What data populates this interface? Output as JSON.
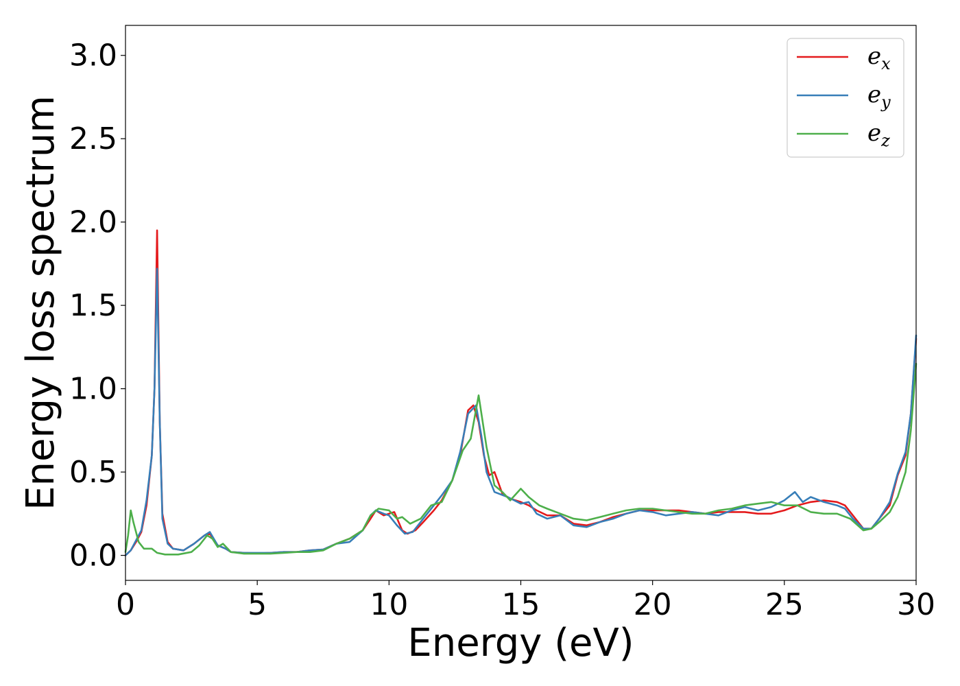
{
  "chart_data": {
    "type": "line",
    "xlabel": "Energy (eV)",
    "ylabel": "Energy loss spectrum",
    "xlim": [
      0,
      30
    ],
    "ylim": [
      -0.15,
      3.18
    ],
    "xticks": [
      0,
      5,
      10,
      15,
      20,
      25,
      30
    ],
    "xtick_labels": [
      "0",
      "5",
      "10",
      "15",
      "20",
      "25",
      "30"
    ],
    "yticks": [
      0.0,
      0.5,
      1.0,
      1.5,
      2.0,
      2.5,
      3.0
    ],
    "ytick_labels": [
      "0.0",
      "0.5",
      "1.0",
      "1.5",
      "2.0",
      "2.5",
      "3.0"
    ],
    "grid": false,
    "legend_position": "top-right",
    "series": [
      {
        "name": "e",
        "subscript": "x",
        "color": "#e41a1c",
        "points": [
          [
            0,
            0.0
          ],
          [
            0.2,
            0.03
          ],
          [
            0.4,
            0.08
          ],
          [
            0.6,
            0.14
          ],
          [
            0.8,
            0.3
          ],
          [
            1.0,
            0.6
          ],
          [
            1.1,
            1.0
          ],
          [
            1.2,
            1.95
          ],
          [
            1.3,
            0.8
          ],
          [
            1.4,
            0.25
          ],
          [
            1.6,
            0.08
          ],
          [
            1.8,
            0.04
          ],
          [
            2.2,
            0.03
          ],
          [
            2.6,
            0.07
          ],
          [
            3.0,
            0.12
          ],
          [
            3.2,
            0.13
          ],
          [
            3.5,
            0.06
          ],
          [
            3.8,
            0.04
          ],
          [
            4.0,
            0.02
          ],
          [
            4.5,
            0.015
          ],
          [
            5.0,
            0.012
          ],
          [
            5.5,
            0.015
          ],
          [
            6.0,
            0.02
          ],
          [
            6.5,
            0.02
          ],
          [
            7.0,
            0.03
          ],
          [
            7.5,
            0.035
          ],
          [
            8.0,
            0.07
          ],
          [
            8.5,
            0.1
          ],
          [
            9.0,
            0.15
          ],
          [
            9.3,
            0.22
          ],
          [
            9.5,
            0.27
          ],
          [
            9.8,
            0.24
          ],
          [
            10.0,
            0.25
          ],
          [
            10.2,
            0.26
          ],
          [
            10.5,
            0.15
          ],
          [
            10.7,
            0.13
          ],
          [
            11.0,
            0.15
          ],
          [
            11.3,
            0.2
          ],
          [
            11.7,
            0.27
          ],
          [
            12.0,
            0.33
          ],
          [
            12.4,
            0.45
          ],
          [
            12.7,
            0.6
          ],
          [
            13.0,
            0.87
          ],
          [
            13.2,
            0.9
          ],
          [
            13.4,
            0.8
          ],
          [
            13.6,
            0.6
          ],
          [
            13.8,
            0.48
          ],
          [
            14.0,
            0.5
          ],
          [
            14.3,
            0.37
          ],
          [
            14.6,
            0.34
          ],
          [
            15.0,
            0.32
          ],
          [
            15.3,
            0.3
          ],
          [
            15.6,
            0.27
          ],
          [
            16.0,
            0.24
          ],
          [
            16.5,
            0.24
          ],
          [
            17.0,
            0.19
          ],
          [
            17.5,
            0.18
          ],
          [
            18.0,
            0.2
          ],
          [
            18.5,
            0.23
          ],
          [
            19.0,
            0.25
          ],
          [
            19.5,
            0.27
          ],
          [
            20.0,
            0.27
          ],
          [
            20.5,
            0.27
          ],
          [
            21.0,
            0.27
          ],
          [
            21.5,
            0.26
          ],
          [
            22.0,
            0.25
          ],
          [
            22.5,
            0.26
          ],
          [
            23.0,
            0.26
          ],
          [
            23.5,
            0.26
          ],
          [
            24.0,
            0.25
          ],
          [
            24.5,
            0.25
          ],
          [
            25.0,
            0.27
          ],
          [
            25.5,
            0.3
          ],
          [
            26.0,
            0.32
          ],
          [
            26.5,
            0.33
          ],
          [
            27.0,
            0.32
          ],
          [
            27.3,
            0.3
          ],
          [
            27.6,
            0.24
          ],
          [
            28.0,
            0.16
          ],
          [
            28.3,
            0.16
          ],
          [
            28.6,
            0.22
          ],
          [
            29.0,
            0.3
          ],
          [
            29.3,
            0.48
          ],
          [
            29.6,
            0.6
          ],
          [
            29.8,
            0.85
          ],
          [
            30.0,
            1.3
          ]
        ]
      },
      {
        "name": "e",
        "subscript": "y",
        "color": "#377eb8",
        "points": [
          [
            0,
            0.0
          ],
          [
            0.2,
            0.03
          ],
          [
            0.4,
            0.09
          ],
          [
            0.6,
            0.15
          ],
          [
            0.8,
            0.33
          ],
          [
            1.0,
            0.6
          ],
          [
            1.1,
            1.0
          ],
          [
            1.2,
            1.72
          ],
          [
            1.3,
            0.8
          ],
          [
            1.4,
            0.22
          ],
          [
            1.6,
            0.07
          ],
          [
            1.8,
            0.04
          ],
          [
            2.2,
            0.03
          ],
          [
            2.6,
            0.07
          ],
          [
            3.0,
            0.12
          ],
          [
            3.2,
            0.14
          ],
          [
            3.5,
            0.06
          ],
          [
            3.8,
            0.04
          ],
          [
            4.0,
            0.02
          ],
          [
            4.5,
            0.015
          ],
          [
            5.0,
            0.015
          ],
          [
            5.5,
            0.015
          ],
          [
            6.0,
            0.02
          ],
          [
            6.5,
            0.02
          ],
          [
            7.0,
            0.03
          ],
          [
            7.5,
            0.035
          ],
          [
            8.0,
            0.07
          ],
          [
            8.5,
            0.08
          ],
          [
            9.0,
            0.15
          ],
          [
            9.3,
            0.24
          ],
          [
            9.5,
            0.27
          ],
          [
            9.8,
            0.25
          ],
          [
            10.0,
            0.24
          ],
          [
            10.3,
            0.18
          ],
          [
            10.6,
            0.13
          ],
          [
            10.9,
            0.14
          ],
          [
            11.3,
            0.22
          ],
          [
            11.7,
            0.3
          ],
          [
            12.0,
            0.36
          ],
          [
            12.4,
            0.45
          ],
          [
            12.7,
            0.62
          ],
          [
            13.0,
            0.85
          ],
          [
            13.3,
            0.9
          ],
          [
            13.5,
            0.72
          ],
          [
            13.7,
            0.5
          ],
          [
            14.0,
            0.38
          ],
          [
            14.5,
            0.35
          ],
          [
            15.0,
            0.31
          ],
          [
            15.3,
            0.32
          ],
          [
            15.6,
            0.25
          ],
          [
            16.0,
            0.22
          ],
          [
            16.5,
            0.24
          ],
          [
            17.0,
            0.18
          ],
          [
            17.5,
            0.17
          ],
          [
            18.0,
            0.2
          ],
          [
            18.5,
            0.22
          ],
          [
            19.0,
            0.25
          ],
          [
            19.5,
            0.27
          ],
          [
            20.0,
            0.26
          ],
          [
            20.5,
            0.24
          ],
          [
            21.0,
            0.25
          ],
          [
            21.5,
            0.26
          ],
          [
            22.0,
            0.25
          ],
          [
            22.5,
            0.24
          ],
          [
            23.0,
            0.27
          ],
          [
            23.5,
            0.29
          ],
          [
            24.0,
            0.27
          ],
          [
            24.5,
            0.29
          ],
          [
            25.0,
            0.33
          ],
          [
            25.4,
            0.38
          ],
          [
            25.7,
            0.32
          ],
          [
            26.0,
            0.35
          ],
          [
            26.5,
            0.32
          ],
          [
            27.0,
            0.3
          ],
          [
            27.3,
            0.28
          ],
          [
            27.6,
            0.22
          ],
          [
            28.0,
            0.16
          ],
          [
            28.3,
            0.16
          ],
          [
            28.6,
            0.22
          ],
          [
            29.0,
            0.32
          ],
          [
            29.3,
            0.49
          ],
          [
            29.6,
            0.62
          ],
          [
            29.8,
            0.85
          ],
          [
            30.0,
            1.32
          ]
        ]
      },
      {
        "name": "e",
        "subscript": "z",
        "color": "#4daf4a",
        "points": [
          [
            0,
            0.02
          ],
          [
            0.1,
            0.12
          ],
          [
            0.2,
            0.27
          ],
          [
            0.3,
            0.2
          ],
          [
            0.5,
            0.08
          ],
          [
            0.7,
            0.04
          ],
          [
            1.0,
            0.04
          ],
          [
            1.2,
            0.015
          ],
          [
            1.5,
            0.005
          ],
          [
            2.0,
            0.005
          ],
          [
            2.5,
            0.02
          ],
          [
            2.8,
            0.06
          ],
          [
            3.1,
            0.12
          ],
          [
            3.3,
            0.1
          ],
          [
            3.5,
            0.05
          ],
          [
            3.7,
            0.07
          ],
          [
            4.0,
            0.02
          ],
          [
            4.5,
            0.01
          ],
          [
            5.0,
            0.01
          ],
          [
            5.5,
            0.01
          ],
          [
            6.0,
            0.015
          ],
          [
            6.5,
            0.02
          ],
          [
            7.0,
            0.02
          ],
          [
            7.5,
            0.03
          ],
          [
            8.0,
            0.07
          ],
          [
            8.5,
            0.1
          ],
          [
            9.0,
            0.15
          ],
          [
            9.3,
            0.24
          ],
          [
            9.6,
            0.28
          ],
          [
            10.0,
            0.27
          ],
          [
            10.3,
            0.22
          ],
          [
            10.5,
            0.23
          ],
          [
            10.8,
            0.19
          ],
          [
            11.2,
            0.22
          ],
          [
            11.6,
            0.3
          ],
          [
            12.0,
            0.32
          ],
          [
            12.4,
            0.45
          ],
          [
            12.8,
            0.63
          ],
          [
            13.1,
            0.7
          ],
          [
            13.4,
            0.96
          ],
          [
            13.7,
            0.65
          ],
          [
            14.0,
            0.42
          ],
          [
            14.3,
            0.38
          ],
          [
            14.6,
            0.33
          ],
          [
            15.0,
            0.4
          ],
          [
            15.3,
            0.35
          ],
          [
            15.7,
            0.3
          ],
          [
            16.0,
            0.28
          ],
          [
            16.5,
            0.25
          ],
          [
            17.0,
            0.22
          ],
          [
            17.5,
            0.21
          ],
          [
            18.0,
            0.23
          ],
          [
            18.5,
            0.25
          ],
          [
            19.0,
            0.27
          ],
          [
            19.5,
            0.28
          ],
          [
            20.0,
            0.28
          ],
          [
            20.5,
            0.27
          ],
          [
            21.0,
            0.26
          ],
          [
            21.5,
            0.25
          ],
          [
            22.0,
            0.25
          ],
          [
            22.5,
            0.27
          ],
          [
            23.0,
            0.28
          ],
          [
            23.5,
            0.3
          ],
          [
            24.0,
            0.31
          ],
          [
            24.5,
            0.32
          ],
          [
            25.0,
            0.3
          ],
          [
            25.5,
            0.3
          ],
          [
            26.0,
            0.26
          ],
          [
            26.5,
            0.25
          ],
          [
            27.0,
            0.25
          ],
          [
            27.5,
            0.22
          ],
          [
            28.0,
            0.15
          ],
          [
            28.3,
            0.16
          ],
          [
            28.6,
            0.2
          ],
          [
            29.0,
            0.26
          ],
          [
            29.3,
            0.35
          ],
          [
            29.6,
            0.5
          ],
          [
            29.8,
            0.75
          ],
          [
            30.0,
            1.15
          ]
        ]
      }
    ]
  }
}
